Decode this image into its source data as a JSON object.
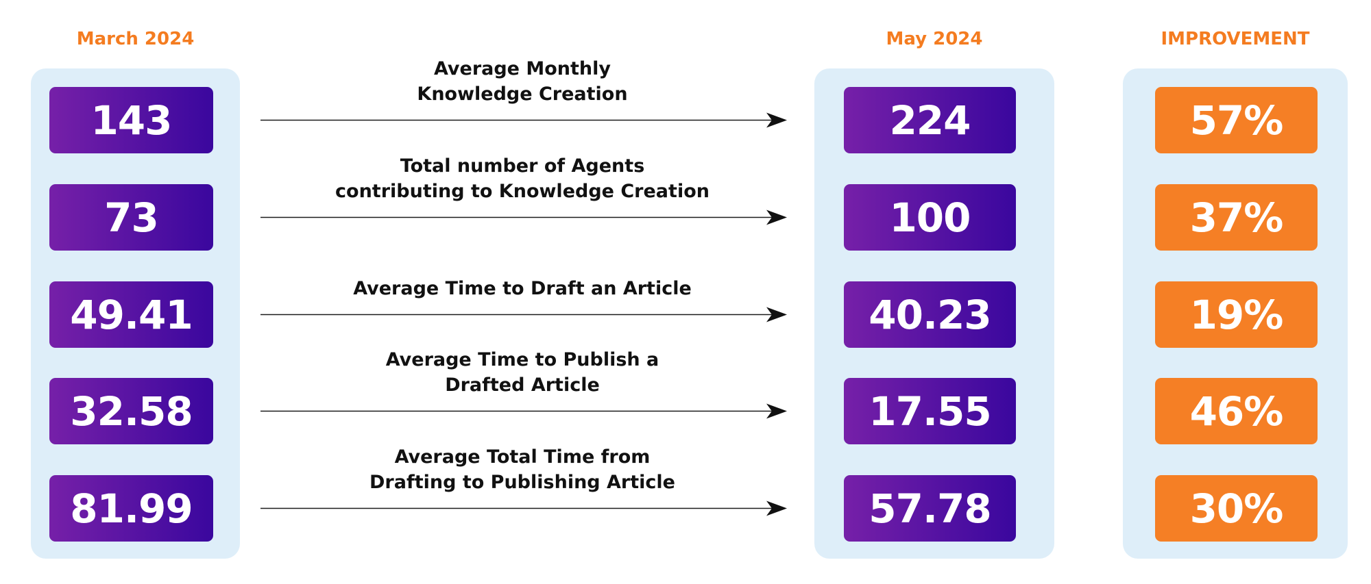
{
  "headers": {
    "before": "March 2024",
    "after": "May 2024",
    "improvement": "IMPROVEMENT"
  },
  "colors": {
    "accent_orange": "#f47c20",
    "purple_start": "#7620a8",
    "purple_end": "#3a079e",
    "panel_bg": "#deeef9"
  },
  "rows": [
    {
      "metric_lines": [
        "Average Monthly",
        "Knowledge Creation"
      ],
      "before": "143",
      "after": "224",
      "improvement": "57%"
    },
    {
      "metric_lines": [
        "Total number of Agents",
        "contributing to Knowledge Creation"
      ],
      "before": "73",
      "after": "100",
      "improvement": "37%"
    },
    {
      "metric_lines": [
        "Average Time to Draft an Article"
      ],
      "before": "49.41",
      "after": "40.23",
      "improvement": "19%"
    },
    {
      "metric_lines": [
        "Average Time to Publish a",
        "Drafted Article"
      ],
      "before": "32.58",
      "after": "17.55",
      "improvement": "46%"
    },
    {
      "metric_lines": [
        "Average Total Time from",
        "Drafting to Publishing Article"
      ],
      "before": "81.99",
      "after": "57.78",
      "improvement": "30%"
    }
  ]
}
